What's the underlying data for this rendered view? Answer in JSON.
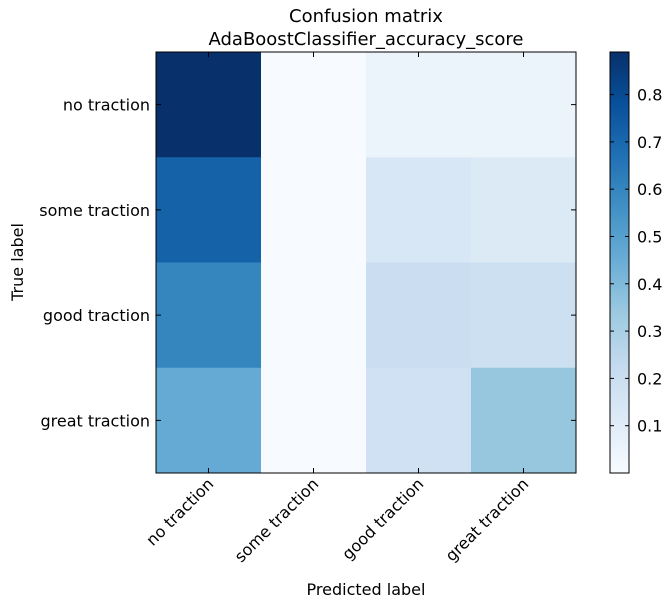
{
  "chart_data": {
    "type": "heatmap",
    "title": "Confusion matrix",
    "subtitle": "AdaBoostClassifier_accuracy_score",
    "xlabel": "Predicted label",
    "ylabel": "True label",
    "row_labels": [
      "no traction",
      "some traction",
      "good traction",
      "great traction"
    ],
    "col_labels": [
      "no traction",
      "some traction",
      "good traction",
      "great traction"
    ],
    "matrix": [
      [
        0.89,
        0.0,
        0.05,
        0.05
      ],
      [
        0.72,
        0.0,
        0.14,
        0.12
      ],
      [
        0.6,
        0.0,
        0.2,
        0.19
      ],
      [
        0.46,
        0.0,
        0.18,
        0.35
      ]
    ],
    "colormap": "Blues",
    "colorbar": {
      "range": [
        0.0,
        0.89
      ],
      "ticks": [
        0.1,
        0.2,
        0.3,
        0.4,
        0.5,
        0.6,
        0.7,
        0.8
      ],
      "tick_labels": [
        "0.1",
        "0.2",
        "0.3",
        "0.4",
        "0.5",
        "0.6",
        "0.7",
        "0.8"
      ]
    },
    "colors": {
      "low": "#f7fbff",
      "high": "#08306b"
    }
  }
}
